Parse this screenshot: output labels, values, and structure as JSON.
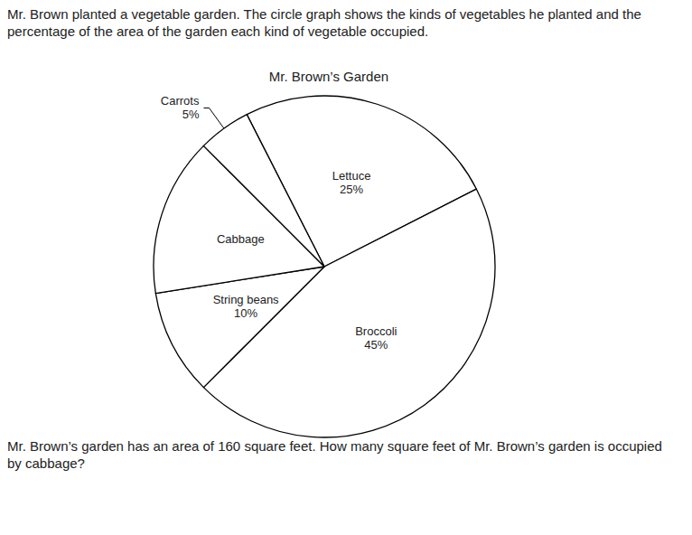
{
  "intro": "Mr. Brown planted a vegetable garden. The circle graph shows the kinds of vegetables he planted and the percentage of the area of the garden each kind of vegetable occupied.",
  "chart_data": {
    "type": "pie",
    "title": "Mr. Brown’s Garden",
    "categories": [
      "Lettuce",
      "Broccoli",
      "String beans",
      "Cabbage",
      "Carrots"
    ],
    "values": [
      25,
      45,
      10,
      15,
      5
    ],
    "value_labels": [
      "25%",
      "45%",
      "10%",
      null,
      "5%"
    ],
    "colors": [
      "#ffffff",
      "#ffffff",
      "#ffffff",
      "#ffffff",
      "#ffffff"
    ],
    "data_labels": true
  },
  "question": "Mr. Brown’s garden has an area of 160 square feet. How many square feet of Mr. Brown’s garden is occupied by cabbage?"
}
